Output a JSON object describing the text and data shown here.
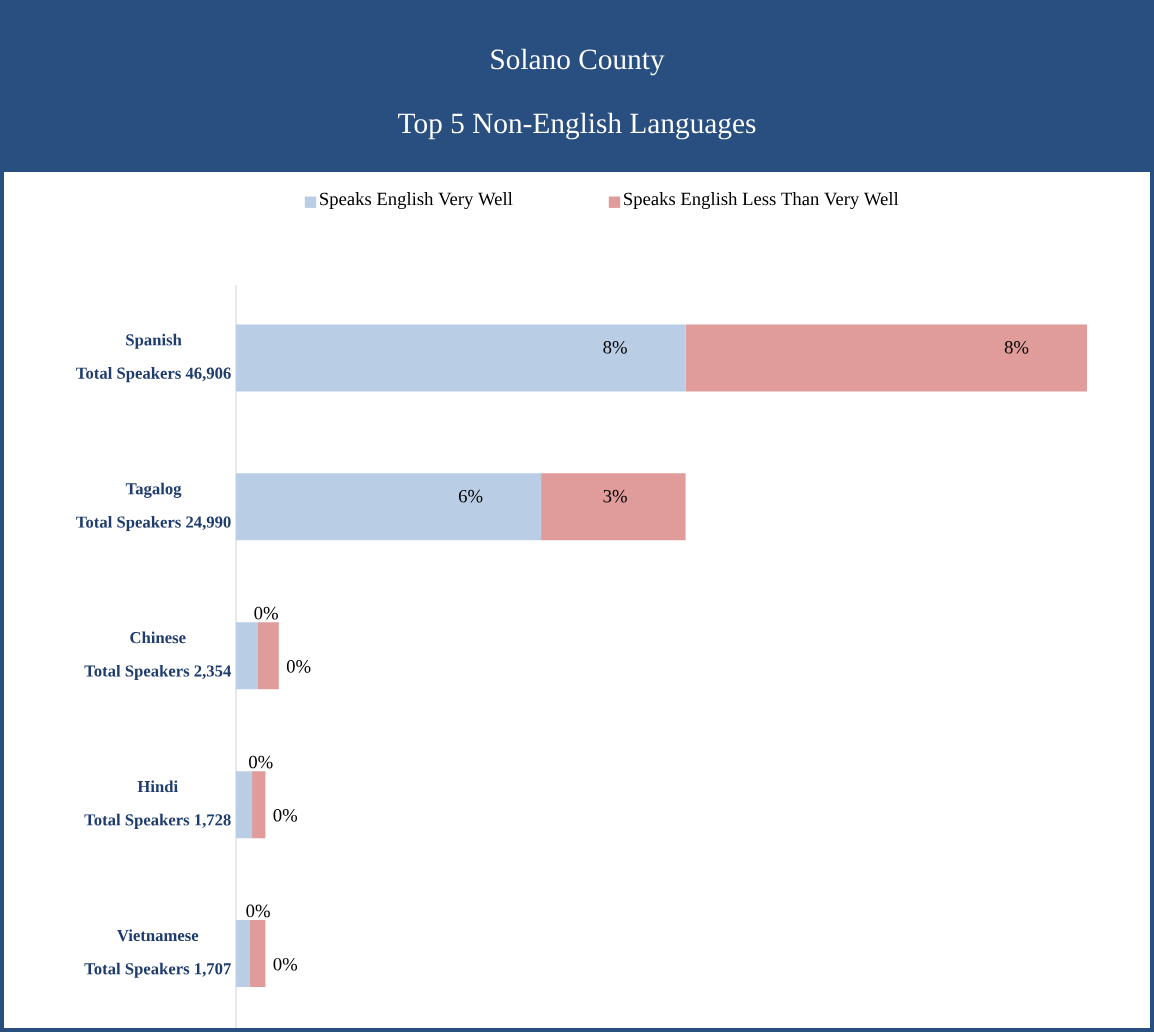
{
  "chart_data": {
    "type": "bar",
    "orientation": "horizontal",
    "stacked": true,
    "title": "Solano County",
    "subtitle": "Top 5 Non-English Languages",
    "categories": [
      "Spanish",
      "Tagalog",
      "Chinese",
      "Hindi",
      "Vietnamese"
    ],
    "annotations": [
      "Total Speakers 46,906",
      "Total Speakers 24,990",
      "Total Speakers 2,354",
      "Total Speakers 1,728",
      "Total Speakers 1,707"
    ],
    "series": [
      {
        "name": "Speaks English Very Well",
        "color": "#b9cde5",
        "values": [
          8.4,
          5.7,
          0.4,
          0.3,
          0.25
        ],
        "value_labels": [
          "8%",
          "6%",
          "0%",
          "0%",
          "0%"
        ]
      },
      {
        "name": "Speaks English Less Than Very Well",
        "color": "#e09c9a",
        "values": [
          7.5,
          2.7,
          0.4,
          0.25,
          0.3
        ],
        "value_labels": [
          "8%",
          "3%",
          "0%",
          "0%",
          "0%"
        ]
      }
    ],
    "legend": "top"
  }
}
